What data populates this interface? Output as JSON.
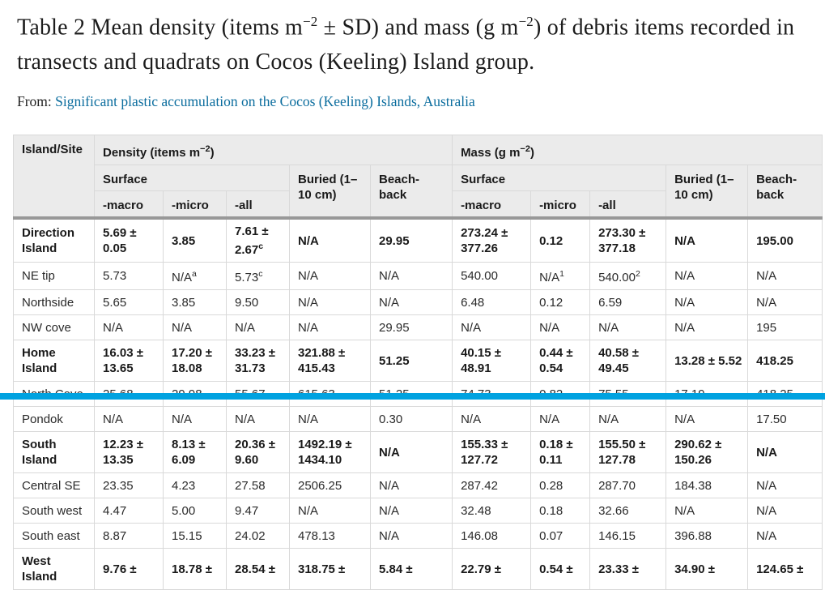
{
  "header": {
    "title": "Table 2 Mean density (items m^−2^ ± SD) and mass (g m^−2^) of debris items recorded in transects and quadrats on Cocos (Keeling) Island group.",
    "from_label": "From: ",
    "source_link": "Significant plastic accumulation on the Cocos (Keeling) Islands, Australia"
  },
  "colors": {
    "link": "#0b6d9e",
    "highlight_bar": "#00a2e0",
    "header_bg": "#ebebeb",
    "divider": "#989898"
  },
  "columns": {
    "island_site": "Island/Site",
    "density_group": "Density (items m^−2^)",
    "mass_group": "Mass (g m^−2^)",
    "surface": "Surface",
    "buried": "Buried (1–10 cm)",
    "beach_back": "Beach-back",
    "macro": "-macro",
    "micro": "-micro",
    "all": "-all"
  },
  "table": {
    "rows": [
      {
        "label": "Direction Island",
        "bold": true,
        "cells": [
          "5.69 ± 0.05",
          "3.85",
          "7.61 ± 2.67^c^",
          "N/A",
          "29.95",
          "273.24 ± 377.26",
          "0.12",
          "273.30 ± 377.18",
          "N/A",
          "195.00"
        ]
      },
      {
        "label": "NE tip",
        "bold": false,
        "cells": [
          "5.73",
          "N/A^a^",
          "5.73^c^",
          "N/A",
          "N/A",
          "540.00",
          "N/A^1^",
          "540.00^2^",
          "N/A",
          "N/A"
        ]
      },
      {
        "label": "Northside",
        "bold": false,
        "cells": [
          "5.65",
          "3.85",
          "9.50",
          "N/A",
          "N/A",
          "6.48",
          "0.12",
          "6.59",
          "N/A",
          "N/A"
        ]
      },
      {
        "label": "NW cove",
        "bold": false,
        "cells": [
          "N/A",
          "N/A",
          "N/A",
          "N/A",
          "29.95",
          "N/A",
          "N/A",
          "N/A",
          "N/A",
          "195"
        ]
      },
      {
        "label": "Home Island",
        "bold": true,
        "cells": [
          "16.03 ± 13.65",
          "17.20 ± 18.08",
          "33.23 ± 31.73",
          "321.88 ± 415.43",
          "51.25",
          "40.15 ± 48.91",
          "0.44 ± 0.54",
          "40.58 ± 49.45",
          "13.28 ± 5.52",
          "418.25"
        ]
      },
      {
        "label": "North Cove",
        "bold": false,
        "cells": [
          "25.68",
          "29.98",
          "55.67",
          "615.63",
          "51.25",
          "74.73",
          "0.82",
          "75.55",
          "17.19",
          "418.25"
        ]
      },
      {
        "label": "Pondok",
        "bold": false,
        "cells": [
          "N/A",
          "N/A",
          "N/A",
          "N/A",
          "0.30",
          "N/A",
          "N/A",
          "N/A",
          "N/A",
          "17.50"
        ]
      },
      {
        "label": "South Island",
        "bold": true,
        "cells": [
          "12.23 ± 13.35",
          "8.13 ± 6.09",
          "20.36 ± 9.60",
          "1492.19 ± 1434.10",
          "N/A",
          "155.33 ± 127.72",
          "0.18 ± 0.11",
          "155.50 ± 127.78",
          "290.62 ± 150.26",
          "N/A"
        ]
      },
      {
        "label": "Central SE",
        "bold": false,
        "cells": [
          "23.35",
          "4.23",
          "27.58",
          "2506.25",
          "N/A",
          "287.42",
          "0.28",
          "287.70",
          "184.38",
          "N/A"
        ]
      },
      {
        "label": "South west",
        "bold": false,
        "cells": [
          "4.47",
          "5.00",
          "9.47",
          "N/A",
          "N/A",
          "32.48",
          "0.18",
          "32.66",
          "N/A",
          "N/A"
        ]
      },
      {
        "label": "South east",
        "bold": false,
        "cells": [
          "8.87",
          "15.15",
          "24.02",
          "478.13",
          "N/A",
          "146.08",
          "0.07",
          "146.15",
          "396.88",
          "N/A"
        ]
      },
      {
        "label": "West Island",
        "bold": true,
        "cells": [
          "9.76 ±",
          "18.78 ±",
          "28.54 ±",
          "318.75 ±",
          "5.84 ±",
          "22.79 ±",
          "0.54 ±",
          "23.33 ±",
          "34.90 ±",
          "124.65 ±"
        ]
      }
    ]
  }
}
